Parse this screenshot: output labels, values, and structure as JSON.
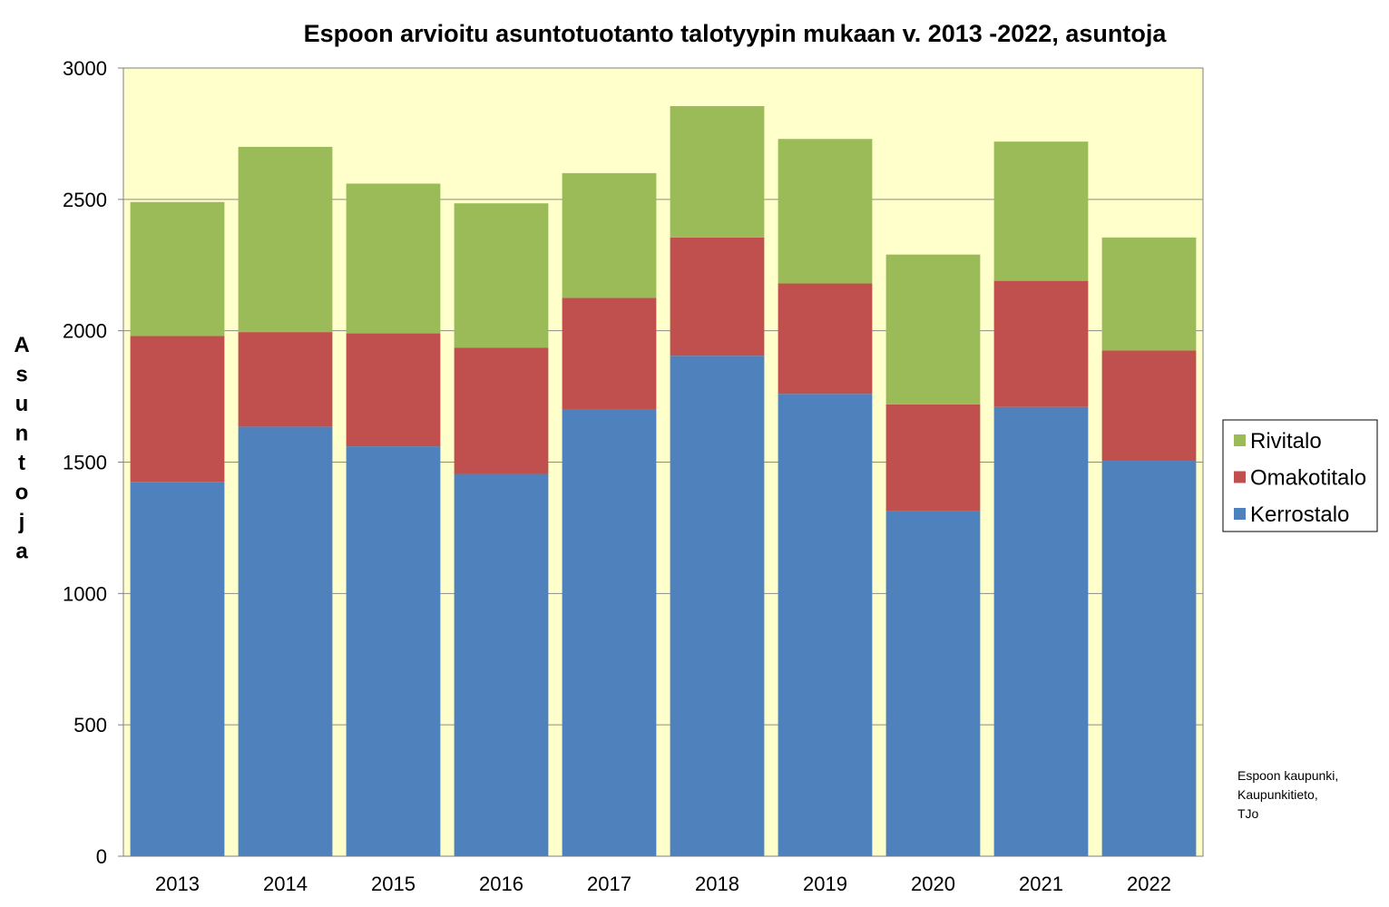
{
  "chart_data": {
    "type": "bar",
    "stacked": true,
    "title": "Espoon arvioitu asuntotuotanto talotyypin mukaan v. 2013 -2022, asuntoja",
    "ylabel": "Asuntoja",
    "xlabel": "",
    "categories": [
      "2013",
      "2014",
      "2015",
      "2016",
      "2017",
      "2018",
      "2019",
      "2020",
      "2021",
      "2022"
    ],
    "series": [
      {
        "name": "Kerrostalo",
        "color": "#4f81bd",
        "values": [
          1425,
          1635,
          1560,
          1455,
          1700,
          1905,
          1760,
          1315,
          1710,
          1505
        ]
      },
      {
        "name": "Omakotitalo",
        "color": "#c0504d",
        "values": [
          555,
          360,
          430,
          480,
          425,
          450,
          420,
          405,
          480,
          420
        ]
      },
      {
        "name": "Rivitalo",
        "color": "#9bbb59",
        "values": [
          510,
          705,
          570,
          550,
          475,
          500,
          550,
          570,
          530,
          430
        ]
      }
    ],
    "ylim": [
      0,
      3000
    ],
    "yticks": [
      0,
      500,
      1000,
      1500,
      2000,
      2500,
      3000
    ],
    "grid": true,
    "plot_background": "#ffffcc",
    "legend_position": "right",
    "legend_order": [
      "Rivitalo",
      "Omakotitalo",
      "Kerrostalo"
    ],
    "source_note": [
      "Espoon kaupunki,",
      "Kaupunkitieto,",
      "TJo"
    ]
  }
}
